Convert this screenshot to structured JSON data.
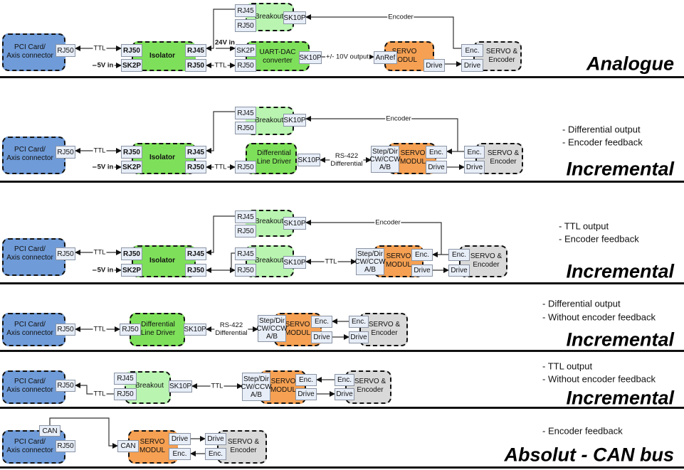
{
  "colors": {
    "pci": "#6f9bd8",
    "green": "#7ee05a",
    "light": "#b9f5b0",
    "servo": "#f5a052",
    "motor": "#d9d9d9",
    "port": "#e8eef8"
  },
  "sections": [
    {
      "title": "Analogue",
      "notes": [],
      "blocks": [
        {
          "label": "PCI Card/\nAxis connector",
          "kind": "pci"
        },
        {
          "label": "Isolator",
          "kind": "green"
        },
        {
          "label": "Breakout",
          "kind": "light"
        },
        {
          "label": "UART-DAC\nconverter",
          "kind": "green"
        },
        {
          "label": "SERVO\nMODUL",
          "kind": "servo"
        },
        {
          "label": "SERVO &\nEncoder",
          "kind": "motor"
        }
      ],
      "ports": [
        "RJ50",
        "RJ50",
        "SK2P",
        "RJ45",
        "RJ50",
        "RJ45",
        "RJ50",
        "SK10P",
        "SK2P",
        "RJ50",
        "SK10P",
        "AnRef",
        "Drive",
        "Enc.",
        "Drive"
      ],
      "labels": [
        "TTL",
        "5V in",
        "24V in",
        "TTL",
        "+/- 10V output",
        "Encoder"
      ]
    },
    {
      "title": "Incremental",
      "notes": [
        "- Differential output",
        "- Encoder feedback"
      ],
      "blocks": [
        {
          "label": "PCI Card/\nAxis connector",
          "kind": "pci"
        },
        {
          "label": "Isolator",
          "kind": "green"
        },
        {
          "label": "Breakout",
          "kind": "light"
        },
        {
          "label": "Differential\nLine Driver",
          "kind": "green"
        },
        {
          "label": "SERVO\nMODUL",
          "kind": "servo"
        },
        {
          "label": "SERVO &\nEncoder",
          "kind": "motor"
        }
      ],
      "ports": [
        "RJ50",
        "RJ50",
        "SK2P",
        "RJ45",
        "RJ50",
        "RJ45",
        "RJ50",
        "SK10P",
        "RJ50",
        "SK10P",
        "Step/Dir\nCW/CCW\nA/B",
        "Enc.",
        "Drive",
        "Enc.",
        "Drive"
      ],
      "labels": [
        "TTL",
        "5V in",
        "TTL",
        "RS-422\nDifferential",
        "Encoder"
      ]
    },
    {
      "title": "Incremental",
      "notes": [
        "- TTL output",
        "- Encoder feedback"
      ],
      "blocks": [
        {
          "label": "PCI Card/\nAxis connector",
          "kind": "pci"
        },
        {
          "label": "Isolator",
          "kind": "green"
        },
        {
          "label": "Breakout",
          "kind": "light"
        },
        {
          "label": "Breakout",
          "kind": "light"
        },
        {
          "label": "SERVO\nMODUL",
          "kind": "servo"
        },
        {
          "label": "SERVO &\nEncoder",
          "kind": "motor"
        }
      ],
      "ports": [
        "RJ50",
        "RJ50",
        "SK2P",
        "RJ45",
        "RJ50",
        "RJ45",
        "RJ50",
        "SK10P",
        "RJ45",
        "RJ50",
        "SK10P",
        "Step/Dir\nCW/CCW\nA/B",
        "Enc.",
        "Drive",
        "Enc.",
        "Drive"
      ],
      "labels": [
        "TTL",
        "5V in",
        "TTL",
        "Encoder"
      ]
    },
    {
      "title": "Incremental",
      "notes": [
        "- Differential output",
        "- Without encoder feedback"
      ],
      "blocks": [
        {
          "label": "PCI Card/\nAxis connector",
          "kind": "pci"
        },
        {
          "label": "Differential\nLine Driver",
          "kind": "green"
        },
        {
          "label": "SERVO\nMODUL",
          "kind": "servo"
        },
        {
          "label": "SERVO &\nEncoder",
          "kind": "motor"
        }
      ],
      "ports": [
        "RJ50",
        "RJ50",
        "SK10P",
        "Step/Dir\nCW/CCW\nA/B",
        "Enc.",
        "Drive",
        "Enc.",
        "Drive"
      ],
      "labels": [
        "TTL",
        "RS-422\nDifferential"
      ]
    },
    {
      "title": "Incremental",
      "notes": [
        "- TTL output",
        "- Without encoder feedback"
      ],
      "blocks": [
        {
          "label": "PCI Card/\nAxis connector",
          "kind": "pci"
        },
        {
          "label": "Breakout",
          "kind": "light"
        },
        {
          "label": "SERVO\nMODUL",
          "kind": "servo"
        },
        {
          "label": "SERVO &\nEncoder",
          "kind": "motor"
        }
      ],
      "ports": [
        "RJ50",
        "RJ45",
        "RJ50",
        "SK10P",
        "Step/Dir\nCW/CCW\nA/B",
        "Enc.",
        "Drive",
        "Enc.",
        "Drive"
      ],
      "labels": [
        "TTL",
        "TTL"
      ]
    },
    {
      "title": "Absolut - CAN bus",
      "notes": [
        "- Encoder feedback"
      ],
      "blocks": [
        {
          "label": "PCI Card/\nAxis connector",
          "kind": "pci"
        },
        {
          "label": "SERVO\nMODUL",
          "kind": "servo"
        },
        {
          "label": "SERVO &\nEncoder",
          "kind": "motor"
        }
      ],
      "ports": [
        "CAN",
        "RJ50",
        "CAN",
        "Drive",
        "Enc.",
        "Drive",
        "Enc."
      ],
      "labels": []
    }
  ]
}
